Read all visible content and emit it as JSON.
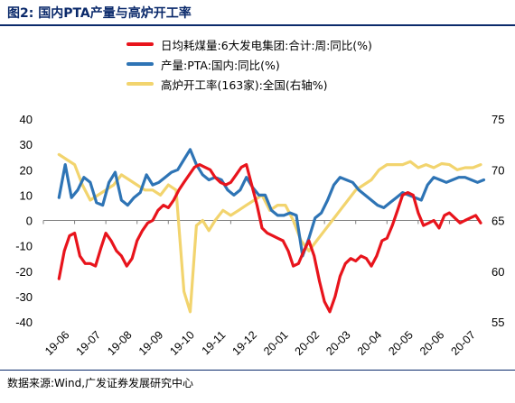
{
  "figure_title": "图2:  国内PTA产量与高炉开工率",
  "source": "数据来源:Wind,广发证券发展研究中心",
  "chart_data": {
    "type": "line",
    "categories": [
      "19-06",
      "19-07",
      "19-08",
      "19-09",
      "19-10",
      "19-11",
      "19-12",
      "20-01",
      "20-02",
      "20-03",
      "20-04",
      "20-05",
      "20-06",
      "20-07"
    ],
    "left_axis": {
      "min": -40,
      "max": 40,
      "ticks": [
        40,
        30,
        20,
        10,
        0,
        -10,
        -20,
        -30,
        -40
      ]
    },
    "right_axis": {
      "min": 55,
      "max": 75,
      "ticks": [
        75,
        70,
        65,
        60,
        55
      ]
    },
    "grid": false,
    "legend_position": "top",
    "series": [
      {
        "name": "日均耗煤量:6大发电集团:合计:周:同比(%)",
        "axis": "left",
        "color": "#e8141c",
        "x": [
          0,
          0.17,
          0.34,
          0.5,
          0.67,
          0.84,
          1,
          1.17,
          1.34,
          1.5,
          1.67,
          1.84,
          2,
          2.17,
          2.34,
          2.5,
          2.67,
          2.84,
          3,
          3.17,
          3.34,
          3.5,
          3.67,
          3.84,
          4,
          4.17,
          4.34,
          4.5,
          4.67,
          4.84,
          5,
          5.17,
          5.34,
          5.5,
          5.67,
          5.84,
          6,
          6.17,
          6.34,
          6.5,
          6.67,
          6.84,
          7,
          7.17,
          7.34,
          7.5,
          7.67,
          7.84,
          8,
          8.17,
          8.34,
          8.5,
          8.67,
          8.84,
          9,
          9.17,
          9.34,
          9.5,
          9.67,
          9.84,
          10,
          10.17,
          10.34,
          10.5,
          10.67,
          10.84,
          11,
          11.17,
          11.34,
          11.5,
          11.67,
          11.84,
          12,
          12.17,
          12.34,
          12.5,
          12.67,
          12.84,
          13,
          13.17,
          13.34,
          13.5
        ],
        "values": [
          -23,
          -12,
          -6,
          -5,
          -14,
          -17,
          -17,
          -18,
          -11,
          -5,
          -8,
          -12,
          -14,
          -18,
          -15,
          -8,
          -4,
          -1,
          0,
          4,
          6,
          5,
          8,
          12,
          15,
          18,
          21,
          22,
          21,
          20,
          17,
          15,
          14,
          15,
          18,
          21,
          22,
          14,
          6,
          -3,
          -5,
          -6,
          -7,
          -8,
          -12,
          -18,
          -17,
          -12,
          -8,
          -14,
          -24,
          -32,
          -36,
          -30,
          -22,
          -17,
          -15,
          -16,
          -14,
          -15,
          -18,
          -14,
          -8,
          -7,
          -2,
          4,
          10,
          11,
          10,
          3,
          -2,
          -1,
          0,
          -3,
          2,
          3,
          1,
          -1,
          0,
          1,
          2,
          -1
        ],
        "x_values_note": "",
        "values_source": ""
      },
      {
        "name": "产量:PTA:国内:同比(%)",
        "axis": "left",
        "color": "#2e74b5",
        "x": [
          0,
          0.2,
          0.4,
          0.6,
          0.8,
          1,
          1.2,
          1.4,
          1.6,
          1.8,
          2,
          2.2,
          2.4,
          2.6,
          2.8,
          3,
          3.2,
          3.4,
          3.6,
          3.8,
          4,
          4.2,
          4.4,
          4.6,
          4.8,
          5,
          5.2,
          5.4,
          5.6,
          5.8,
          6,
          6.2,
          6.4,
          6.6,
          6.8,
          7,
          7.2,
          7.4,
          7.6,
          7.8,
          8,
          8.2,
          8.4,
          8.6,
          8.8,
          9,
          9.2,
          9.4,
          9.6,
          9.8,
          10,
          10.2,
          10.4,
          10.6,
          10.8,
          11,
          11.2,
          11.4,
          11.6,
          11.8,
          12,
          12.2,
          12.4,
          12.6,
          12.8,
          13,
          13.2,
          13.4,
          13.6
        ],
        "values": [
          9,
          22,
          9,
          12,
          17,
          15,
          7,
          6,
          15,
          19,
          8,
          6,
          9,
          11,
          18,
          14,
          15,
          17,
          19,
          20,
          24,
          28,
          22,
          18,
          16,
          17,
          16,
          12,
          10,
          12,
          17,
          13,
          10,
          10,
          4,
          2,
          2,
          3,
          2,
          -14,
          -7,
          1,
          3,
          8,
          14,
          17,
          16,
          15,
          12,
          10,
          8,
          6,
          5,
          7,
          9,
          11,
          10,
          9,
          8,
          14,
          17,
          16,
          15,
          16,
          17,
          17,
          16,
          15,
          16
        ],
        "x_values_note": "",
        "values_source": ""
      },
      {
        "name": "高炉开工率(163家):全国(右轴%)",
        "axis": "right",
        "color": "#f2d46e",
        "x": [
          0,
          0.25,
          0.5,
          0.75,
          1,
          1.25,
          1.5,
          1.75,
          2,
          2.25,
          2.5,
          2.75,
          3,
          3.25,
          3.5,
          3.75,
          4,
          4.2,
          4.4,
          4.6,
          4.8,
          5,
          5.25,
          5.5,
          5.75,
          6,
          6.25,
          6.5,
          6.75,
          7,
          7.25,
          7.5,
          7.75,
          8,
          8.25,
          8.5,
          8.75,
          9,
          9.25,
          9.5,
          9.75,
          10,
          10.25,
          10.5,
          10.75,
          11,
          11.25,
          11.5,
          11.75,
          12,
          12.25,
          12.5,
          12.75,
          13,
          13.25,
          13.5
        ],
        "values": [
          71.5,
          71,
          70.5,
          68.5,
          67,
          67.5,
          68,
          68.5,
          69.5,
          69,
          68.5,
          68,
          68,
          67.5,
          68.5,
          68,
          58,
          56,
          64.5,
          65,
          64,
          65,
          66,
          65.5,
          66,
          66.5,
          67,
          67.5,
          66,
          66.5,
          66.5,
          65,
          63,
          62,
          63,
          64,
          65,
          66,
          67,
          68,
          68.5,
          69,
          70,
          70.5,
          70.5,
          70.5,
          70.8,
          70.2,
          70.5,
          70.2,
          70.6,
          70.5,
          70,
          70.2,
          70.2,
          70.5
        ],
        "x_values_note": "",
        "values_source": ""
      }
    ]
  }
}
